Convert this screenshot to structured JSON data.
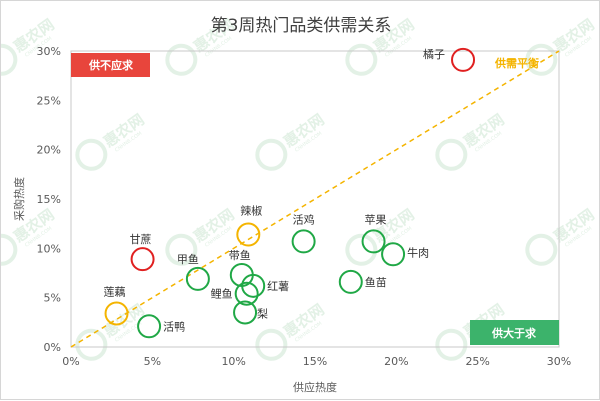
{
  "colors": {
    "balanced_line": "#f4b400",
    "shortage": "#e8453c",
    "surplus": "#3cb36b",
    "green_point": "#20a846",
    "orange_point": "#f4b400",
    "red_point": "#e02020",
    "watermark": "#e3f1e6"
  },
  "watermark": {
    "icon": "leaf-logo",
    "text": "惠农网",
    "sub": "CNHNB.COM"
  },
  "chart_data": {
    "type": "scatter",
    "title": "第3周热门品类供需关系",
    "xlabel": "供应热度",
    "ylabel": "采购热度",
    "xlim": [
      0,
      0.3
    ],
    "ylim": [
      0,
      0.3
    ],
    "x_ticks": [
      "0%",
      "5%",
      "10%",
      "15%",
      "20%",
      "25%",
      "30%"
    ],
    "y_ticks": [
      "0%",
      "5%",
      "10%",
      "15%",
      "20%",
      "25%",
      "30%"
    ],
    "grid": false,
    "reference_line": {
      "label": "供需平衡",
      "from": [
        0,
        0
      ],
      "to": [
        0.3,
        0.3
      ],
      "style": "dashed"
    },
    "regions": {
      "shortage_label": "供不应求",
      "surplus_label": "供大于求"
    },
    "points": [
      {
        "name": "橘子",
        "x": 0.241,
        "y": 0.291,
        "category": "red"
      },
      {
        "name": "甘蔗",
        "x": 0.044,
        "y": 0.089,
        "category": "red"
      },
      {
        "name": "辣椒",
        "x": 0.109,
        "y": 0.114,
        "category": "orange"
      },
      {
        "name": "莲藕",
        "x": 0.028,
        "y": 0.034,
        "category": "orange"
      },
      {
        "name": "活鸡",
        "x": 0.143,
        "y": 0.107,
        "category": "green"
      },
      {
        "name": "苹果",
        "x": 0.186,
        "y": 0.107,
        "category": "green"
      },
      {
        "name": "牛肉",
        "x": 0.198,
        "y": 0.094,
        "category": "green"
      },
      {
        "name": "甲鱼",
        "x": 0.078,
        "y": 0.069,
        "category": "green"
      },
      {
        "name": "带鱼",
        "x": 0.105,
        "y": 0.073,
        "category": "green"
      },
      {
        "name": "红薯",
        "x": 0.112,
        "y": 0.062,
        "category": "green"
      },
      {
        "name": "鲤鱼",
        "x": 0.108,
        "y": 0.054,
        "category": "green"
      },
      {
        "name": "鱼苗",
        "x": 0.172,
        "y": 0.066,
        "category": "green"
      },
      {
        "name": "梨",
        "x": 0.107,
        "y": 0.035,
        "category": "green"
      },
      {
        "name": "活鸭",
        "x": 0.048,
        "y": 0.021,
        "category": "green"
      }
    ]
  }
}
